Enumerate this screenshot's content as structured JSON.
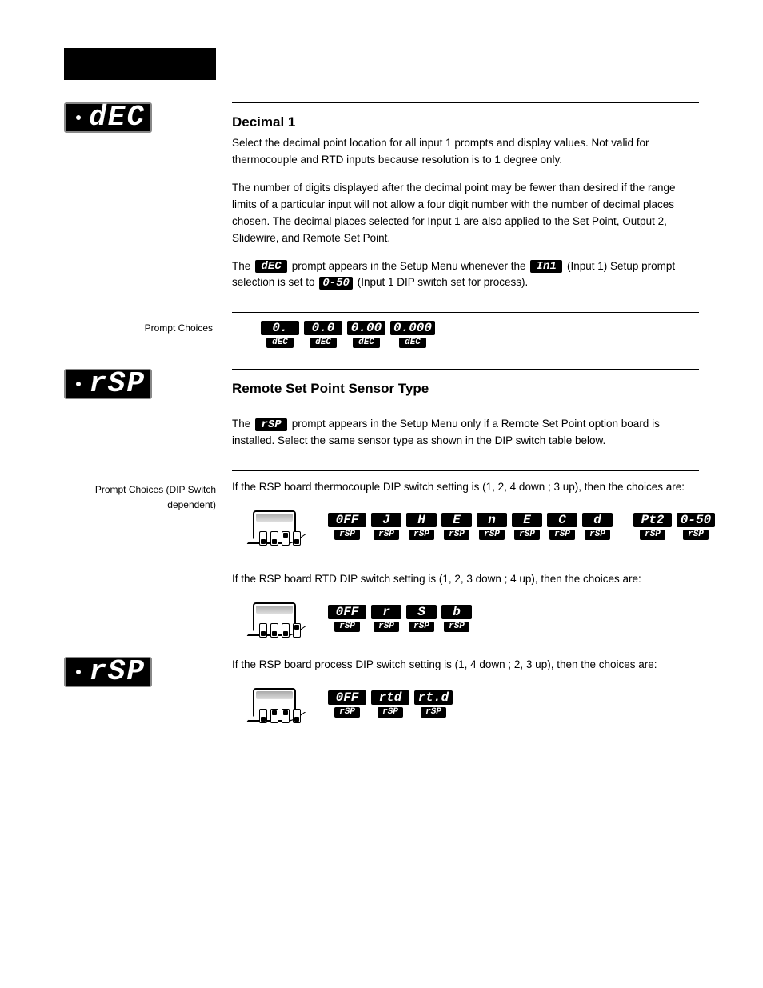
{
  "chips_big": {
    "dec": "dEC",
    "rsp": "rSP",
    "rsp2": "rSP"
  },
  "section_decimal": {
    "title": "Decimal 1",
    "p1": "Select the decimal point location for all input 1 prompts and display values. Not valid for thermocouple and RTD inputs because resolution is to 1 degree only.",
    "p2": "The number of digits displayed after the decimal point may be fewer than desired if the range limits of a particular input will not allow a four digit number with the number of decimal places chosen. The decimal places selected for Input 1 are also applied to the Set Point, Output 2, Slidewire, and Remote Set Point.",
    "p3_pre": "The",
    "p3_chip": "dEC",
    "p3_mid": "prompt appears in the Setup Menu whenever the",
    "p3_chip2": "In1",
    "p3_tail": "(Input 1) Setup prompt selection is set to",
    "p3_chip3": "0-50",
    "p3_last": "(Input 1 DIP switch set for process)."
  },
  "decimal_tokens": {
    "label": "Prompt Choices",
    "opts": [
      "0.",
      "0.0",
      "0.00",
      "0.000"
    ],
    "sub": "dEC"
  },
  "section_rsp": {
    "title": "Remote Set Point Sensor Type",
    "p1_pre": "The",
    "p1_chip": "rSP",
    "p1_mid": "prompt appears in the Setup Menu only if a Remote Set Point option board is installed. Select the same sensor type as shown in the DIP switch table below.",
    "label": "Prompt Choices (DIP Switch dependent)",
    "tc_caption": "If the RSP board thermocouple DIP switch setting is (1, 2, 4 down ; 3 up), then the choices are:",
    "tc_opts": [
      "0FF",
      "J",
      "H",
      "E",
      "n",
      "E",
      "C",
      "d",
      "Pt2",
      "0-50"
    ],
    "rtd_caption": "If the RSP board RTD DIP switch setting is (1, 2, 3 down ; 4 up), then the choices are:",
    "rtd_opts": [
      "0FF",
      "r",
      "S",
      "b"
    ],
    "proc_caption": "If the RSP board process DIP switch setting is (1, 4 down ; 2, 3 up), then the choices are:",
    "proc_opts": [
      "0FF",
      "rtd",
      "rt.d"
    ],
    "sub": "rSP"
  },
  "dip_patterns": {
    "tc": [
      "down",
      "down",
      "up",
      "down"
    ],
    "rtd": [
      "down",
      "down",
      "down",
      "up"
    ],
    "proc": [
      "down",
      "up",
      "up",
      "down"
    ]
  },
  "colors": {
    "bg": "#ffffff",
    "fg": "#000000",
    "chip_border": "#888888"
  }
}
